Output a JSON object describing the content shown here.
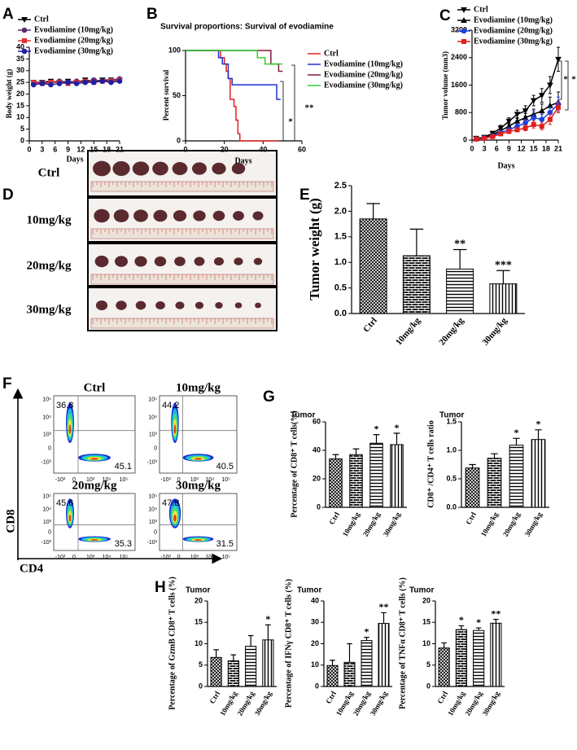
{
  "panel_labels": [
    "A",
    "B",
    "C",
    "D",
    "E",
    "F",
    "G",
    "H"
  ],
  "tumor_photos": {
    "labels": [
      "Ctrl",
      "10mg/kg",
      "20mg/kg",
      "30mg/kg"
    ]
  },
  "flow": {
    "x_label": "CD4",
    "y_label": "CD8",
    "yticks": [
      "10⁵",
      "10⁴",
      "10³",
      "0",
      "-10³"
    ],
    "xticks": [
      "-10³",
      "0",
      "10³",
      "10⁴",
      "10⁵"
    ],
    "plots": [
      {
        "title": "Ctrl",
        "q1": 36.8,
        "q4": 45.1
      },
      {
        "title": "10mg/kg",
        "q1": 44.2,
        "q4": 40.5
      },
      {
        "title": "20mg/kg",
        "q1": 45.6,
        "q4": 35.3
      },
      {
        "title": "30mg/kg",
        "q1": 47.8,
        "q4": 31.5
      }
    ]
  },
  "chart_data": [
    {
      "type": "line",
      "xlabel": "Days",
      "ylabel": "Body weight (g)",
      "x": [
        1,
        3,
        5,
        7,
        9,
        11,
        13,
        15,
        17,
        19,
        21
      ],
      "xlim": [
        0,
        21
      ],
      "xticks": [
        0,
        3,
        6,
        9,
        12,
        15,
        18,
        21
      ],
      "ylim": [
        0,
        40
      ],
      "yticks": [
        0,
        5,
        10,
        15,
        20,
        25,
        30,
        35,
        40
      ],
      "series": [
        {
          "name": "Ctrl",
          "color": "#000000",
          "marker": "triangle-down",
          "values": [
            25,
            25,
            25.5,
            25,
            25.5,
            25,
            26,
            25.5,
            26,
            26,
            26
          ]
        },
        {
          "name": "Evodiamine (10mg/kg)",
          "color": "#5a2a6e",
          "marker": "circle",
          "values": [
            24.5,
            25,
            25,
            25.5,
            25,
            25.5,
            25,
            26,
            25.5,
            26,
            26.5
          ]
        },
        {
          "name": "Evodiamine (20mg/kg)",
          "color": "#e03030",
          "marker": "square",
          "values": [
            25,
            24.5,
            25,
            25,
            24.5,
            25,
            25.5,
            25,
            25.5,
            25.5,
            26
          ]
        },
        {
          "name": "Evodiamine (30mg/kg)",
          "color": "#2020a0",
          "marker": "circle",
          "values": [
            24,
            24.5,
            24,
            24.5,
            25,
            24.5,
            25,
            25,
            25.5,
            25,
            25.5
          ]
        }
      ]
    },
    {
      "type": "line",
      "step": true,
      "title": "Survival proportions: Survival of evodiamine",
      "xlabel": "Days",
      "ylabel": "Percent survival",
      "xlim": [
        0,
        60
      ],
      "xticks": [
        0,
        20,
        40,
        60
      ],
      "ylim": [
        0,
        100
      ],
      "yticks": [
        0,
        50,
        100
      ],
      "annotations": [
        "*",
        "**"
      ],
      "series": [
        {
          "name": "Ctrl",
          "color": "#e02020",
          "x": [
            0,
            18,
            20,
            21,
            22,
            23,
            25,
            26,
            27,
            28,
            48
          ],
          "values": [
            100,
            92,
            85,
            77,
            69,
            46,
            38,
            23,
            8,
            0,
            0
          ]
        },
        {
          "name": "Evodiamine (10mg/kg)",
          "color": "#2030d0",
          "x": [
            0,
            17,
            19,
            22,
            24,
            47,
            49
          ],
          "values": [
            100,
            92,
            85,
            69,
            62,
            46,
            46
          ]
        },
        {
          "name": "Evodiamine (20mg/kg)",
          "color": "#8b1a3a",
          "x": [
            0,
            44,
            48,
            50
          ],
          "values": [
            100,
            85,
            77,
            77
          ]
        },
        {
          "name": "Evodiamine (30mg/kg)",
          "color": "#30d030",
          "x": [
            0,
            37,
            41,
            50
          ],
          "values": [
            100,
            92,
            85,
            85
          ]
        }
      ]
    },
    {
      "type": "line",
      "xlabel": "Days",
      "ylabel": "Tumor volume (mm3)",
      "x": [
        1,
        3,
        5,
        7,
        9,
        11,
        13,
        15,
        17,
        19,
        21
      ],
      "xlim": [
        0,
        21
      ],
      "xticks": [
        0,
        3,
        6,
        9,
        12,
        15,
        18,
        21
      ],
      "ylim": [
        0,
        3200
      ],
      "yticks": [
        0,
        800,
        1600,
        2400,
        3200
      ],
      "annotations": [
        "*",
        "*"
      ],
      "series": [
        {
          "name": "Ctrl",
          "color": "#000000",
          "marker": "triangle-down",
          "values": [
            50,
            80,
            200,
            350,
            550,
            750,
            850,
            1150,
            1300,
            1600,
            2350
          ],
          "errors": [
            20,
            30,
            50,
            80,
            100,
            120,
            150,
            150,
            200,
            250,
            350
          ]
        },
        {
          "name": "Evodiamine (10mg/kg)",
          "color": "#000000",
          "marker": "triangle-up",
          "values": [
            40,
            70,
            150,
            280,
            400,
            550,
            650,
            750,
            850,
            1000,
            1100
          ],
          "errors": [
            20,
            20,
            40,
            60,
            80,
            100,
            120,
            150,
            200,
            250,
            300
          ]
        },
        {
          "name": "Evodiamine (20mg/kg)",
          "color": "#2040e0",
          "marker": "circle",
          "values": [
            30,
            60,
            120,
            220,
            300,
            400,
            500,
            650,
            600,
            800,
            1050
          ],
          "errors": [
            10,
            20,
            30,
            40,
            60,
            80,
            100,
            200,
            150,
            150,
            200
          ]
        },
        {
          "name": "Evodiamine (30mg/kg)",
          "color": "#e02020",
          "marker": "square",
          "values": [
            30,
            50,
            100,
            180,
            250,
            300,
            350,
            450,
            400,
            600,
            950
          ],
          "errors": [
            10,
            20,
            30,
            30,
            50,
            60,
            80,
            100,
            100,
            150,
            150
          ]
        }
      ]
    },
    {
      "type": "bar",
      "ylabel": "Tumor weight (g)",
      "categories": [
        "Ctrl",
        "10mg/kg",
        "20mg/kg",
        "30mg/kg"
      ],
      "values": [
        1.85,
        1.13,
        0.87,
        0.58
      ],
      "errors": [
        0.3,
        0.52,
        0.38,
        0.26
      ],
      "annotations": [
        null,
        null,
        "**",
        "***"
      ],
      "ylim": [
        0,
        2.5
      ],
      "yticks": [
        {
          "value": 0,
          "label": "0.0"
        },
        0.5,
        {
          "value": 1,
          "label": "1.0"
        },
        1.5,
        {
          "value": 2,
          "label": "2.0"
        },
        2.5
      ]
    },
    {
      "type": "bar",
      "title": "Tumor",
      "ylabel": "Percentage of CD8⁺ T cells(%)",
      "categories": [
        "Ctrl",
        "10mg/kg",
        "20mg/kg",
        "30mg/kg"
      ],
      "values": [
        34,
        37,
        45,
        44
      ],
      "errors": [
        3,
        4,
        6,
        8
      ],
      "annotations": [
        null,
        null,
        "*",
        "*"
      ],
      "ylim": [
        0,
        60
      ],
      "yticks": [
        0,
        20,
        40,
        60
      ]
    },
    {
      "type": "bar",
      "title": "Tumor",
      "ylabel": "CD8⁺ /CD4⁺ T cells ratio",
      "categories": [
        "Ctrl",
        "10mg/kg",
        "20mg/kg",
        "30mg/kg"
      ],
      "values": [
        0.69,
        0.86,
        1.09,
        1.19
      ],
      "errors": [
        0.06,
        0.08,
        0.12,
        0.17
      ],
      "annotations": [
        null,
        null,
        "*",
        "*"
      ],
      "ylim": [
        0,
        1.5
      ],
      "yticks": [
        {
          "value": 0,
          "label": "0.0"
        },
        0.5,
        {
          "value": 1,
          "label": "1.0"
        },
        1.5
      ]
    },
    {
      "type": "bar",
      "title": "Tumor",
      "ylabel": "Percentage of GzmB CD8⁺ T cells (%)",
      "categories": [
        "Ctrl",
        "10mg/kg",
        "20mg/kg",
        "30mg/kg"
      ],
      "values": [
        6.8,
        6.0,
        9.4,
        10.9
      ],
      "errors": [
        1.8,
        1.4,
        2.5,
        3.5
      ],
      "annotations": [
        null,
        null,
        null,
        "*"
      ],
      "ylim": [
        0,
        20
      ],
      "yticks": [
        0,
        5,
        10,
        15,
        20
      ]
    },
    {
      "type": "bar",
      "title": "Tumor",
      "ylabel": "Percentage of IFNγ CD8⁺ T cells (%)",
      "categories": [
        "Ctrl",
        "10mg/kg",
        "20mg/kg",
        "30mg/kg"
      ],
      "values": [
        9.8,
        11.3,
        21.5,
        29.5
      ],
      "errors": [
        2.5,
        8.7,
        1.5,
        5
      ],
      "annotations": [
        null,
        null,
        "*",
        "**"
      ],
      "ylim": [
        0,
        40
      ],
      "yticks": [
        0,
        10,
        20,
        30,
        40
      ]
    },
    {
      "type": "bar",
      "title": "Tumor",
      "ylabel": "Percentage of TNFα CD8⁺ T cells (%)",
      "categories": [
        "Ctrl",
        "10mg/kg",
        "20mg/kg",
        "30mg/kg"
      ],
      "values": [
        9,
        13.3,
        13.1,
        14.8
      ],
      "errors": [
        1.2,
        0.9,
        0.6,
        0.9
      ],
      "annotations": [
        null,
        "*",
        "*",
        "**"
      ],
      "ylim": [
        0,
        20
      ],
      "yticks": [
        0,
        5,
        10,
        15,
        20
      ]
    }
  ]
}
